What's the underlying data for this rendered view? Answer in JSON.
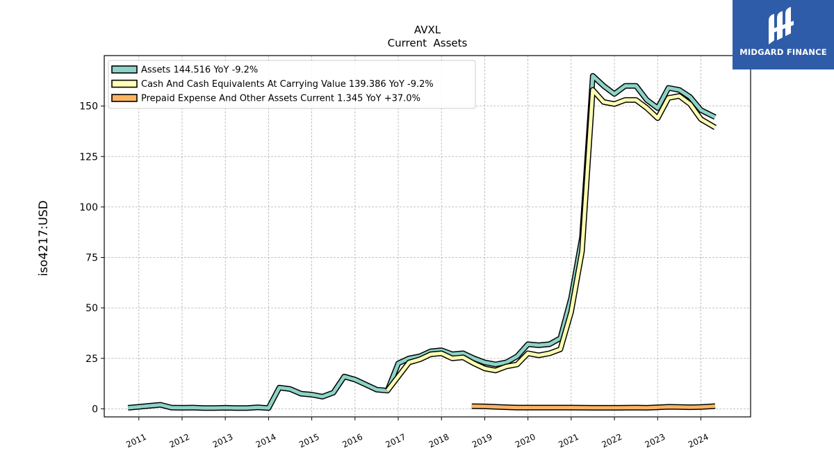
{
  "chart_data": {
    "type": "line",
    "title": "AVXL",
    "subtitle": "Current  Assets",
    "ylabel": "iso4217:USD",
    "xlabel": "",
    "ylim": [
      -4,
      175
    ],
    "xlim": [
      2010.2,
      2025.15
    ],
    "yticks": [
      0,
      25,
      50,
      75,
      100,
      125,
      150
    ],
    "xticks": [
      2011,
      2012,
      2013,
      2014,
      2015,
      2016,
      2017,
      2018,
      2019,
      2020,
      2021,
      2022,
      2023,
      2024
    ],
    "grid": true,
    "legend_position": "top-left",
    "series": [
      {
        "name": "Assets  144.516 YoY -9.2%",
        "color": "#8dd3c7",
        "x": [
          2010.75,
          2011.0,
          2011.25,
          2011.5,
          2011.75,
          2012.0,
          2012.25,
          2012.5,
          2012.75,
          2013.0,
          2013.25,
          2013.5,
          2013.75,
          2014.0,
          2014.25,
          2014.5,
          2014.75,
          2015.0,
          2015.25,
          2015.5,
          2015.75,
          2016.0,
          2016.25,
          2016.5,
          2016.75,
          2017.0,
          2017.25,
          2017.5,
          2017.75,
          2018.0,
          2018.25,
          2018.5,
          2018.75,
          2019.0,
          2019.25,
          2019.5,
          2019.75,
          2020.0,
          2020.25,
          2020.5,
          2020.75,
          2021.0,
          2021.25,
          2021.5,
          2021.75,
          2022.0,
          2022.25,
          2022.5,
          2022.75,
          2023.0,
          2023.25,
          2023.5,
          2023.75,
          2024.0,
          2024.33
        ],
        "values": [
          0.5,
          1.0,
          1.5,
          2.0,
          0.6,
          0.5,
          0.6,
          0.4,
          0.4,
          0.5,
          0.4,
          0.4,
          0.7,
          0.4,
          10.5,
          9.8,
          7.5,
          7.0,
          6.0,
          8.0,
          16.0,
          14.5,
          12.0,
          9.5,
          9.0,
          22.5,
          25.0,
          26.0,
          28.5,
          29.0,
          27.0,
          27.5,
          25.0,
          23.0,
          22.0,
          23.0,
          26.0,
          32.0,
          31.5,
          32.0,
          35.0,
          55.0,
          85.0,
          165.0,
          160.0,
          156.0,
          160.0,
          160.0,
          153.0,
          149.0,
          159.0,
          158.0,
          154.5,
          148.0,
          144.516
        ]
      },
      {
        "name": "Cash And Cash Equivalents At Carrying Value  139.386 YoY -9.2%",
        "color": "#ffffb3",
        "x": [
          2016.75,
          2017.0,
          2017.25,
          2017.5,
          2017.75,
          2018.0,
          2018.25,
          2018.5,
          2018.75,
          2019.0,
          2019.25,
          2019.5,
          2019.75,
          2020.0,
          2020.25,
          2020.5,
          2020.75,
          2021.0,
          2021.25,
          2021.5,
          2021.75,
          2022.0,
          2022.25,
          2022.5,
          2022.75,
          2023.0,
          2023.25,
          2023.5,
          2023.75,
          2024.0,
          2024.33
        ],
        "values": [
          9.0,
          16.0,
          23.0,
          24.5,
          27.0,
          27.5,
          25.0,
          25.5,
          22.5,
          20.0,
          19.0,
          21.0,
          22.0,
          27.5,
          26.5,
          27.5,
          29.5,
          48.0,
          78.0,
          158.0,
          152.0,
          151.0,
          153.0,
          153.0,
          149.0,
          144.0,
          154.0,
          155.0,
          151.0,
          143.5,
          139.386
        ]
      },
      {
        "name": "Prepaid Expense And Other Assets Current  1.345 YoY +37.0%",
        "color": "#fdb462",
        "x": [
          2018.7,
          2019.0,
          2019.25,
          2019.5,
          2019.75,
          2020.0,
          2020.5,
          2021.0,
          2021.5,
          2022.0,
          2022.5,
          2022.75,
          2023.0,
          2023.25,
          2023.5,
          2023.75,
          2024.0,
          2024.33
        ],
        "values": [
          1.3,
          1.2,
          1.0,
          0.8,
          0.6,
          0.6,
          0.6,
          0.6,
          0.5,
          0.5,
          0.6,
          0.5,
          0.7,
          1.0,
          0.9,
          0.8,
          0.9,
          1.345
        ]
      }
    ]
  },
  "logo": {
    "text": "MIDGARD FINANCE",
    "color": "#2f5ca8"
  }
}
